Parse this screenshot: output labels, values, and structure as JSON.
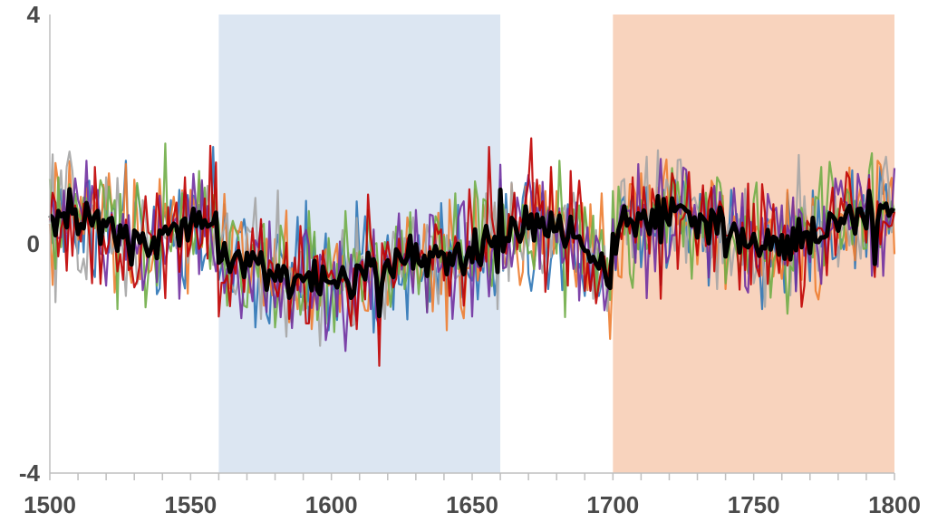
{
  "chart_data": {
    "type": "line",
    "title": "",
    "xlabel": "",
    "ylabel": "",
    "xlim": [
      1500,
      1800
    ],
    "ylim": [
      -4,
      4
    ],
    "x_ticks": [
      1500,
      1550,
      1600,
      1650,
      1700,
      1750,
      1800
    ],
    "y_ticks": [
      4,
      0,
      -4
    ],
    "x_tick_labels": [
      "1500",
      "1550",
      "1600",
      "1650",
      "1700",
      "1750",
      "1800"
    ],
    "y_tick_labels": [
      "4",
      "0",
      "-4"
    ],
    "grid": false,
    "legend": "none",
    "shaded_periods": [
      {
        "x_start": 1560,
        "x_end": 1660,
        "color": "#dce6f2"
      },
      {
        "x_start": 1700,
        "x_end": 1800,
        "color": "#f8d3bd"
      }
    ],
    "series": [
      {
        "color": "#2e75b6",
        "values": []
      },
      {
        "color": "#ed7d31",
        "values": []
      },
      {
        "color": "#a5a5a5",
        "values": []
      },
      {
        "color": "#70ad47",
        "values": []
      },
      {
        "color": "#7030a0",
        "values": []
      },
      {
        "color": "#c00000",
        "values": []
      },
      {
        "color": "#000000",
        "style": "mean",
        "values": []
      }
    ]
  }
}
